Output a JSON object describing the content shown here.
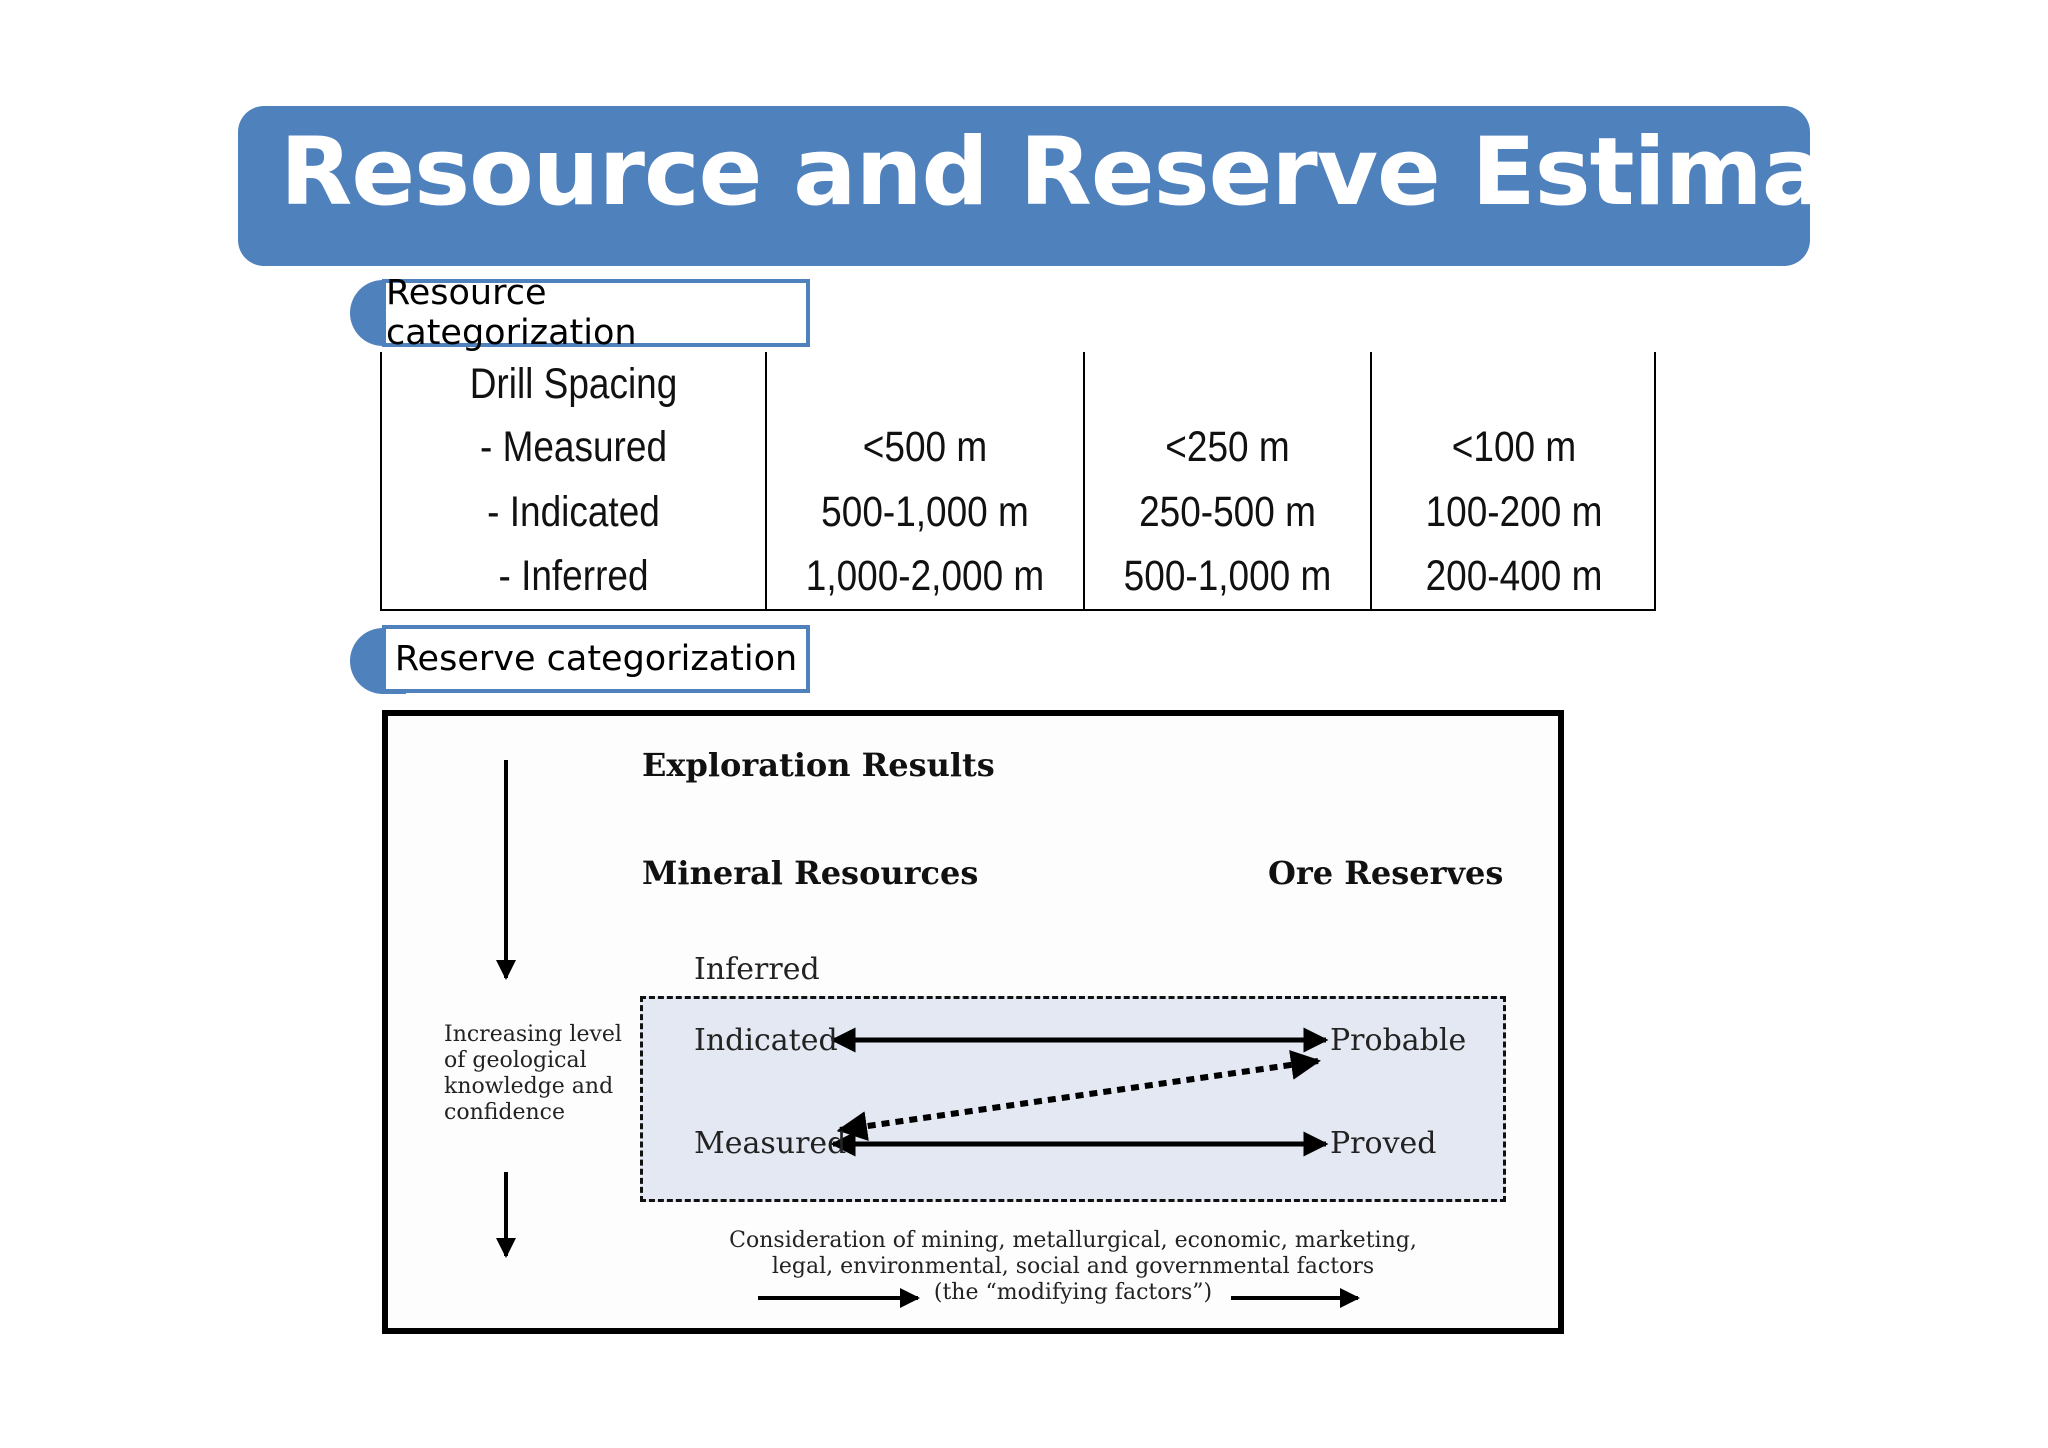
{
  "slide": {
    "title": "Resource and Reserve Estimation",
    "colors": {
      "accent": "#4f81bd",
      "tint": "#e4e8f2"
    }
  },
  "resource": {
    "label": "Resource categorization",
    "columns": [
      [
        "Drill Spacing",
        "- Measured",
        "- Indicated",
        "- Inferred"
      ],
      [
        "",
        "<500 m",
        "500-1,000 m",
        "1,000-2,000 m"
      ],
      [
        "",
        "<250 m",
        "250-500 m",
        "500-1,000 m"
      ],
      [
        "",
        "<100 m",
        "100-200 m",
        "200-400 m"
      ]
    ]
  },
  "reserve": {
    "label": "Reserve categorization",
    "exploration_results": "Exploration Results",
    "mineral_resources": "Mineral Resources",
    "ore_reserves": "Ore Reserves",
    "inferred": "Inferred",
    "indicated": "Indicated",
    "measured": "Measured",
    "probable": "Probable",
    "proved": "Proved",
    "side_note": [
      "Increasing level",
      "of geological",
      "knowledge and",
      "confidence"
    ],
    "modifying_note": [
      "Consideration of mining, metallurgical, economic, marketing,",
      "legal, environmental, social and governmental factors",
      "(the “modifying factors”)"
    ]
  }
}
